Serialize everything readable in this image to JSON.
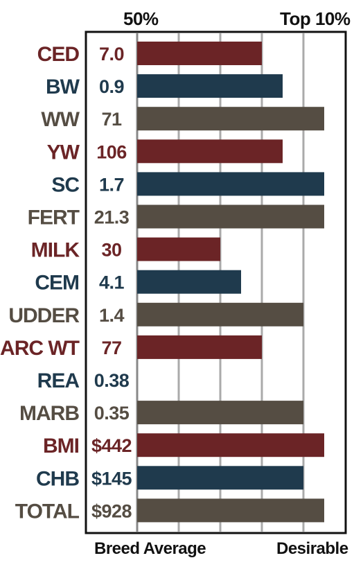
{
  "labels": {
    "top_left": "50%",
    "top_right": "Top 10%",
    "bottom_left": "Breed Average",
    "bottom_right": "Desirable"
  },
  "colors": {
    "red": "#6b2426",
    "blue": "#1f3a4d",
    "gray": "#554d43",
    "gridline": "#aaaaaa",
    "frame": "#111111"
  },
  "chart_data": {
    "type": "bar",
    "orientation": "horizontal",
    "scale_note": "relative position from Breed Average (0) to Desirable",
    "xlim": [
      0,
      4.5
    ],
    "grid": true,
    "categories": [
      "CED",
      "BW",
      "WW",
      "YW",
      "SC",
      "FERT",
      "MILK",
      "CEM",
      "UDDER",
      "CARC WT",
      "REA",
      "MARB",
      "BMI",
      "CHB",
      "TOTAL"
    ],
    "value_labels": [
      "7.0",
      "0.9",
      "71",
      "106",
      "1.7",
      "21.3",
      "30",
      "4.1",
      "1.4",
      "77",
      "0.38",
      "0.35",
      "$442",
      "$145",
      "$928"
    ],
    "bar_values": [
      3,
      3.5,
      4.5,
      3.5,
      4.5,
      4.5,
      2,
      2.5,
      4,
      3,
      0,
      4,
      4.5,
      4,
      4.5
    ],
    "bar_colors": [
      "red",
      "blue",
      "gray",
      "red",
      "blue",
      "gray",
      "red",
      "blue",
      "gray",
      "red",
      "blue",
      "gray",
      "red",
      "blue",
      "gray"
    ]
  }
}
